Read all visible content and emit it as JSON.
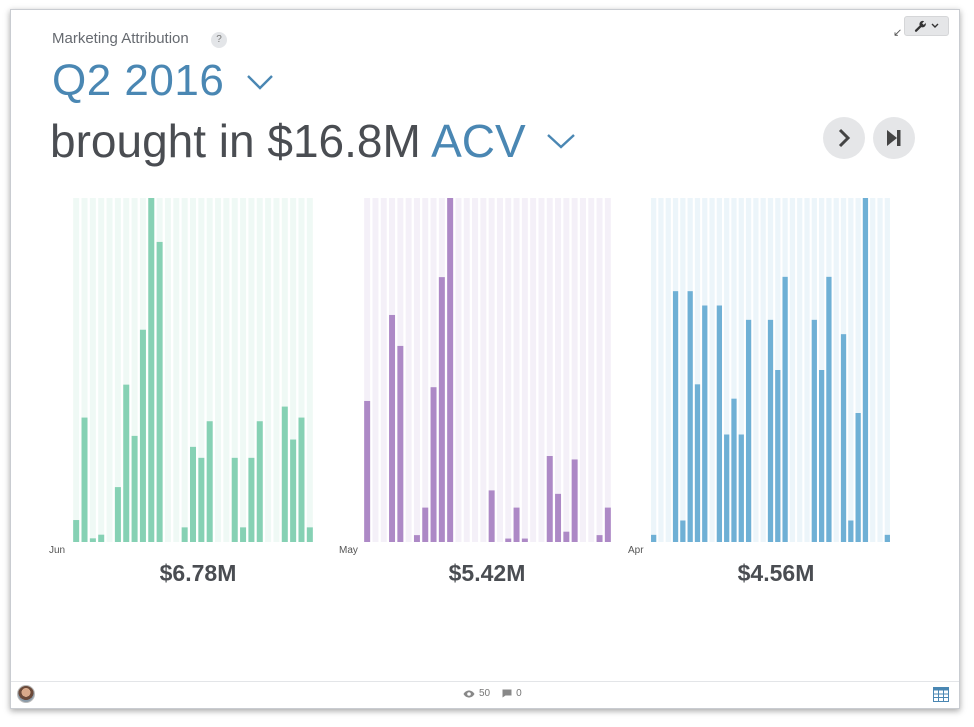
{
  "card": {
    "title": "Marketing Attribution",
    "help": "?",
    "period": "Q2 2016",
    "headline_prefix": "brought in $16.8M",
    "metric": "ACV"
  },
  "icons": {
    "help": "help-icon",
    "wrench": "wrench-icon",
    "expand": "expand-icon",
    "next": "chevron-right-icon",
    "skip": "skip-to-end-icon",
    "views": "eye-icon",
    "comments": "comment-icon",
    "table": "table-icon"
  },
  "colors": {
    "accent": "#4a87b3",
    "green": "#86d1b4",
    "purple": "#ad89c6",
    "blue": "#6fb0d5"
  },
  "footer": {
    "views": "50",
    "comments": "0"
  },
  "chart_data": [
    {
      "type": "bar",
      "month": "Jun",
      "total": "$6.78M",
      "color": "#86d1b4",
      "values": [
        6,
        34,
        1,
        2,
        0,
        15,
        43,
        29,
        58,
        94,
        82,
        0,
        0,
        4,
        26,
        23,
        33,
        0,
        0,
        23,
        4,
        23,
        33,
        0,
        0,
        37,
        28,
        34,
        4
      ]
    },
    {
      "type": "bar",
      "month": "May",
      "total": "$5.42M",
      "color": "#ad89c6",
      "values": [
        41,
        0,
        0,
        66,
        57,
        0,
        2,
        10,
        45,
        77,
        100,
        0,
        0,
        0,
        0,
        15,
        0,
        1,
        10,
        1,
        0,
        0,
        25,
        14,
        3,
        24,
        0,
        0,
        2,
        10
      ]
    },
    {
      "type": "bar",
      "month": "Apr",
      "total": "$4.56M",
      "color": "#6fb0d5",
      "values": [
        1,
        0,
        0,
        35,
        3,
        35,
        22,
        33,
        0,
        33,
        15,
        20,
        15,
        31,
        0,
        0,
        31,
        24,
        37,
        0,
        0,
        0,
        31,
        24,
        37,
        0,
        29,
        3,
        18,
        48,
        0,
        0,
        1
      ]
    }
  ]
}
